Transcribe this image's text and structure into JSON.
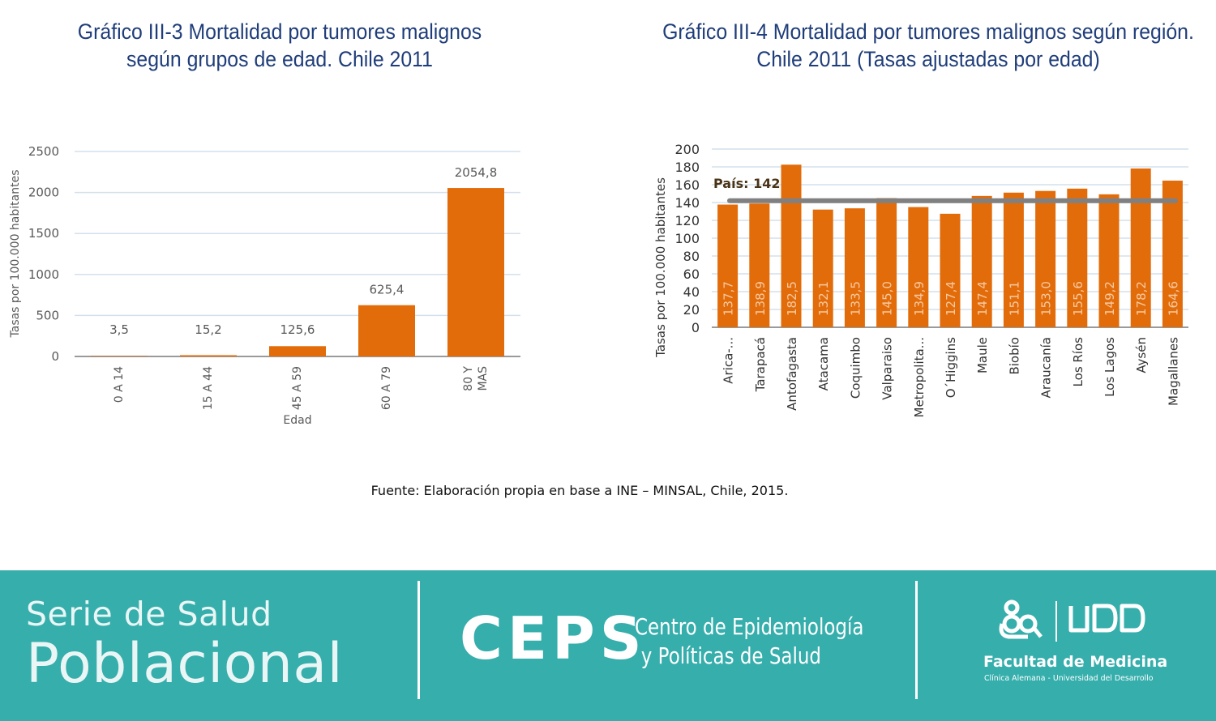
{
  "charts": {
    "chart1": {
      "title_line1": "Gráfico III-3 Mortalidad por tumores malignos",
      "title_line2": "según grupos de edad. Chile 2011"
    },
    "chart2": {
      "title_line1": "Gráfico III-4 Mortalidad por tumores malignos según región.",
      "title_line2": "Chile 2011 (Tasas ajustadas por edad)"
    }
  },
  "chart_data": [
    {
      "type": "bar",
      "categories": [
        "0 A 14",
        "15 A 44",
        "45 A 59",
        "60 A 79",
        "80 Y MAS"
      ],
      "values": [
        3.5,
        15.2,
        125.6,
        625.4,
        2054.8
      ],
      "data_labels": [
        "3,5",
        "15,2",
        "125,6",
        "625,4",
        "2054,8"
      ],
      "xlabel": "Edad",
      "ylabel": "Tasas por 100.000 habitantes",
      "ylim": [
        0,
        2500
      ],
      "yticks": [
        0,
        500,
        1000,
        1500,
        2000,
        2500
      ],
      "grid": true,
      "color": "#e36c0a"
    },
    {
      "type": "bar",
      "categories": [
        "Arica-...",
        "Tarapacá",
        "Antofagasta",
        "Atacama",
        "Coquimbo",
        "Valparaiso",
        "Metropolita...",
        "O´Higgins",
        "Maule",
        "Biobío",
        "Araucanía",
        "Los Ríos",
        "Los Lagos",
        "Aysén",
        "Magallanes"
      ],
      "values": [
        137.7,
        138.9,
        182.5,
        132.1,
        133.5,
        145.0,
        134.9,
        127.4,
        147.4,
        151.1,
        153.0,
        155.6,
        149.2,
        178.2,
        164.6
      ],
      "data_labels": [
        "137,7",
        "138,9",
        "182,5",
        "132,1",
        "133,5",
        "145,0",
        "134,9",
        "127,4",
        "147,4",
        "151,1",
        "153,0",
        "155,6",
        "149,2",
        "178,2",
        "164,6"
      ],
      "ylabel": "Tasas por 100.000 habitantes",
      "ylim": [
        0,
        200
      ],
      "yticks": [
        0,
        20,
        40,
        60,
        80,
        100,
        120,
        140,
        160,
        180,
        200
      ],
      "grid": true,
      "color": "#e36c0a",
      "reference_line": {
        "value": 142,
        "label": "País: 142",
        "color": "#808080"
      }
    }
  ],
  "source": "Fuente: Elaboración propia en base a INE – MINSAL, Chile, 2015.",
  "footer": {
    "serie_line1": "Serie de Salud",
    "serie_line2": "Poblacional",
    "ceps_logo": "CEPS",
    "ceps_name_line1": "Centro de Epidemiología",
    "ceps_name_line2": "y Políticas de Salud",
    "udd_logo": "UDD",
    "faculty": "Facultad de Medicina",
    "faculty_sub": "Clínica Alemana - Universidad del Desarrollo",
    "background_color": "#35aeac"
  }
}
